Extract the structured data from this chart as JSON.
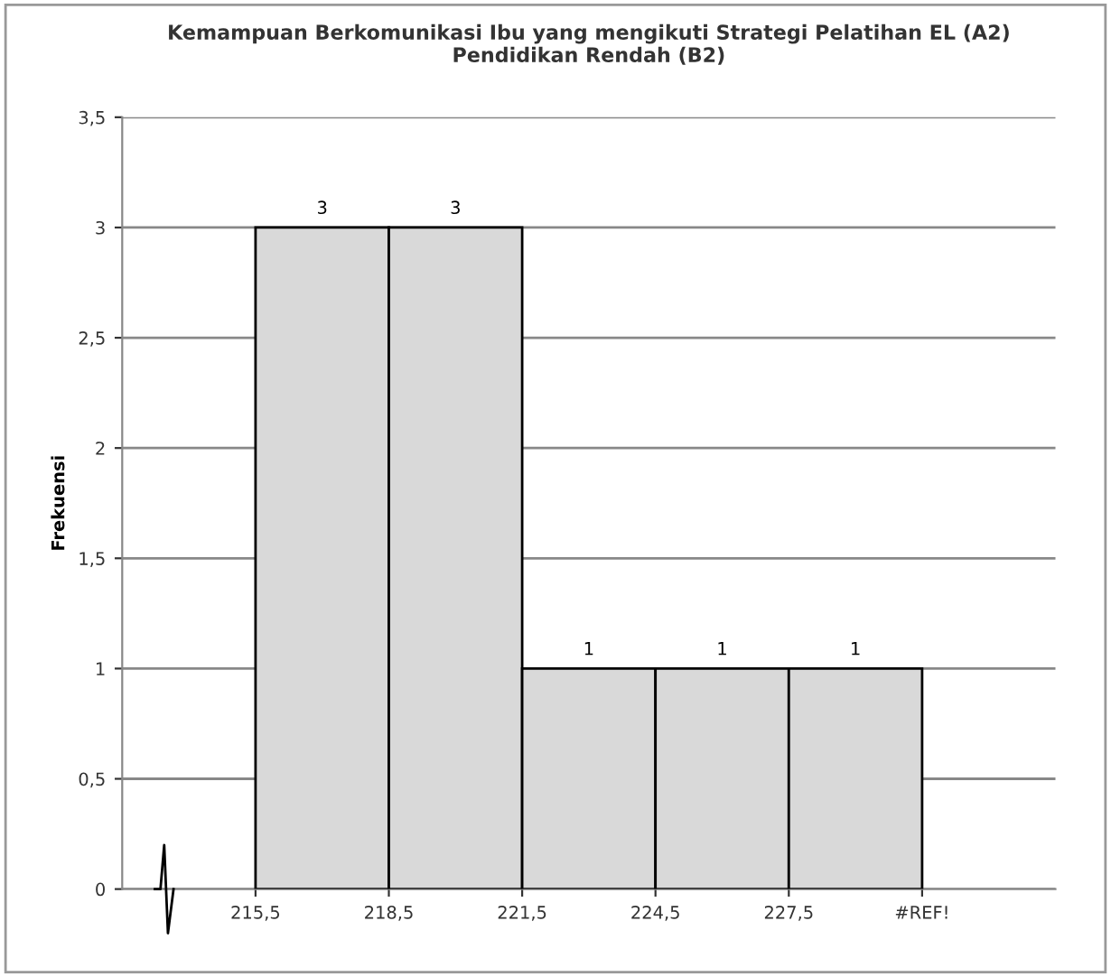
{
  "chart_data": {
    "type": "histogram",
    "title": "Kemampuan Berkomunikasi Ibu yang mengikuti Strategi Pelatihan EL (A2)\nPendidikan Rendah (B2)",
    "ylabel": "Frekuensi",
    "bins": [
      215.5,
      218.5,
      221.5,
      224.5,
      227.5,
      230.5
    ],
    "values": [
      3,
      3,
      1,
      1,
      1
    ],
    "color": "#d9d9d9",
    "data_labels": true,
    "xlim": [
      212.5,
      233.5
    ],
    "xticks": [
      {
        "value": 215.5,
        "label": "215,5"
      },
      {
        "value": 218.5,
        "label": "218,5"
      },
      {
        "value": 221.5,
        "label": "221,5"
      },
      {
        "value": 224.5,
        "label": "224,5"
      },
      {
        "value": 227.5,
        "label": "227,5"
      },
      {
        "value": 230.5,
        "label": "#REF!"
      }
    ],
    "ylim": [
      0,
      3.5
    ],
    "yticks": [
      0,
      {
        "value": 0.5,
        "label": "0,5"
      },
      1,
      {
        "value": 1.5,
        "label": "1,5"
      },
      2,
      {
        "value": 2.5,
        "label": "2,5"
      },
      3,
      {
        "value": 3.5,
        "label": "3,5"
      }
    ],
    "grid": "y"
  }
}
